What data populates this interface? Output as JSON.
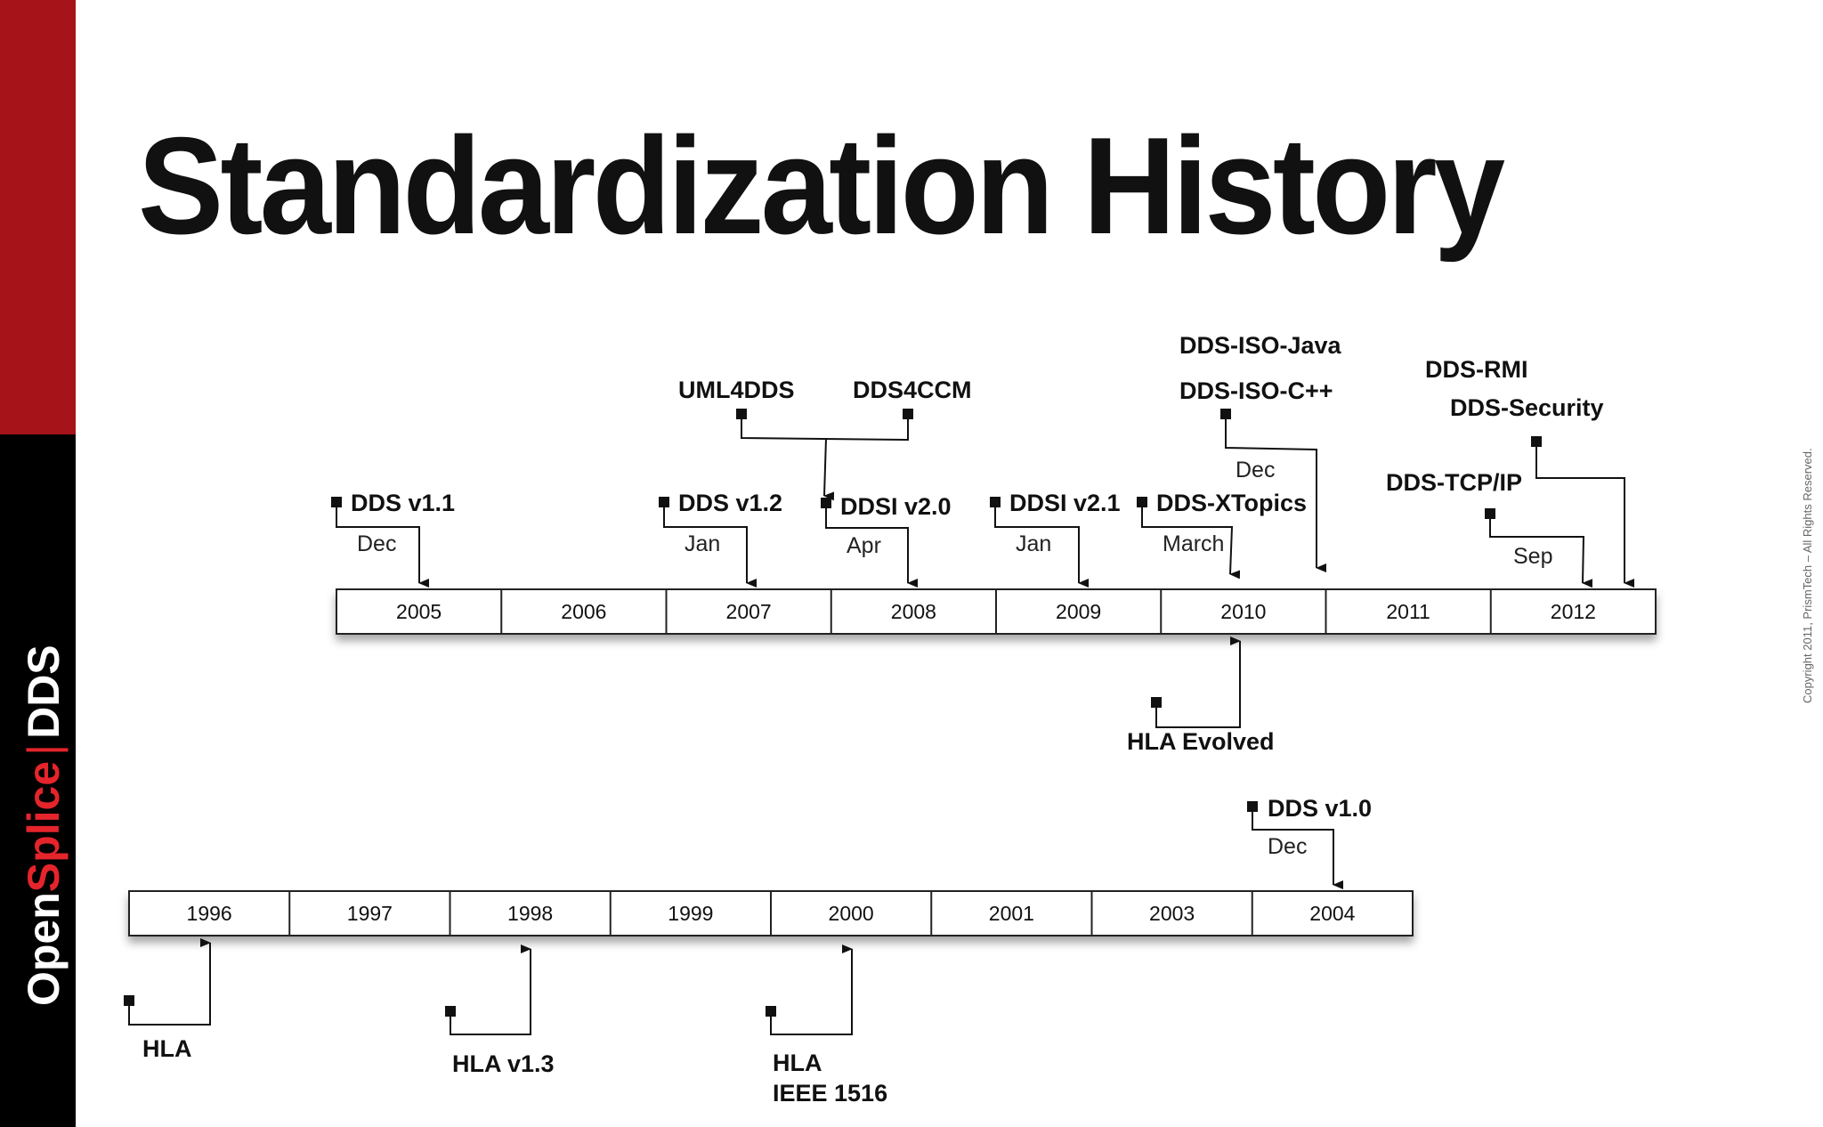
{
  "title": "Standardization History",
  "brand": {
    "open": "Open",
    "splice": "Splice",
    "sep": "|",
    "product": "DDS"
  },
  "copyright": "Copyright 2011, PrismTech – All Rights Reserved.",
  "timelines": {
    "upper_years": [
      "2005",
      "2006",
      "2007",
      "2008",
      "2009",
      "2010",
      "2011",
      "2012"
    ],
    "lower_years": [
      "1996",
      "1997",
      "1998",
      "1999",
      "2000",
      "2001",
      "2003",
      "2004"
    ]
  },
  "events": {
    "dds_v11": {
      "label": "DDS v1.1",
      "month": "Dec"
    },
    "dds_v12": {
      "label": "DDS v1.2",
      "month": "Jan"
    },
    "uml4dds": {
      "label": "UML4DDS"
    },
    "dds4ccm": {
      "label": "DDS4CCM"
    },
    "ddsi_v20": {
      "label": "DDSI v2.0",
      "month": "Apr"
    },
    "ddsi_v21": {
      "label": "DDSI v2.1",
      "month": "Jan"
    },
    "dds_xtopics": {
      "label": "DDS-XTopics",
      "month": "March"
    },
    "dds_iso_java": {
      "label": "DDS-ISO-Java"
    },
    "dds_iso_cpp": {
      "label": "DDS-ISO-C++",
      "month": "Dec"
    },
    "dds_rmi": {
      "label": "DDS-RMI"
    },
    "dds_security": {
      "label": "DDS-Security"
    },
    "dds_tcp_ip": {
      "label": "DDS-TCP/IP",
      "month": "Sep"
    },
    "hla_evolved": {
      "label": "HLA Evolved"
    },
    "dds_v10": {
      "label": "DDS v1.0",
      "month": "Dec"
    },
    "hla": {
      "label": "HLA"
    },
    "hla_v13": {
      "label": "HLA v1.3"
    },
    "hla_ieee_1": {
      "label": "HLA"
    },
    "hla_ieee_2": {
      "label": "IEEE 1516"
    }
  }
}
